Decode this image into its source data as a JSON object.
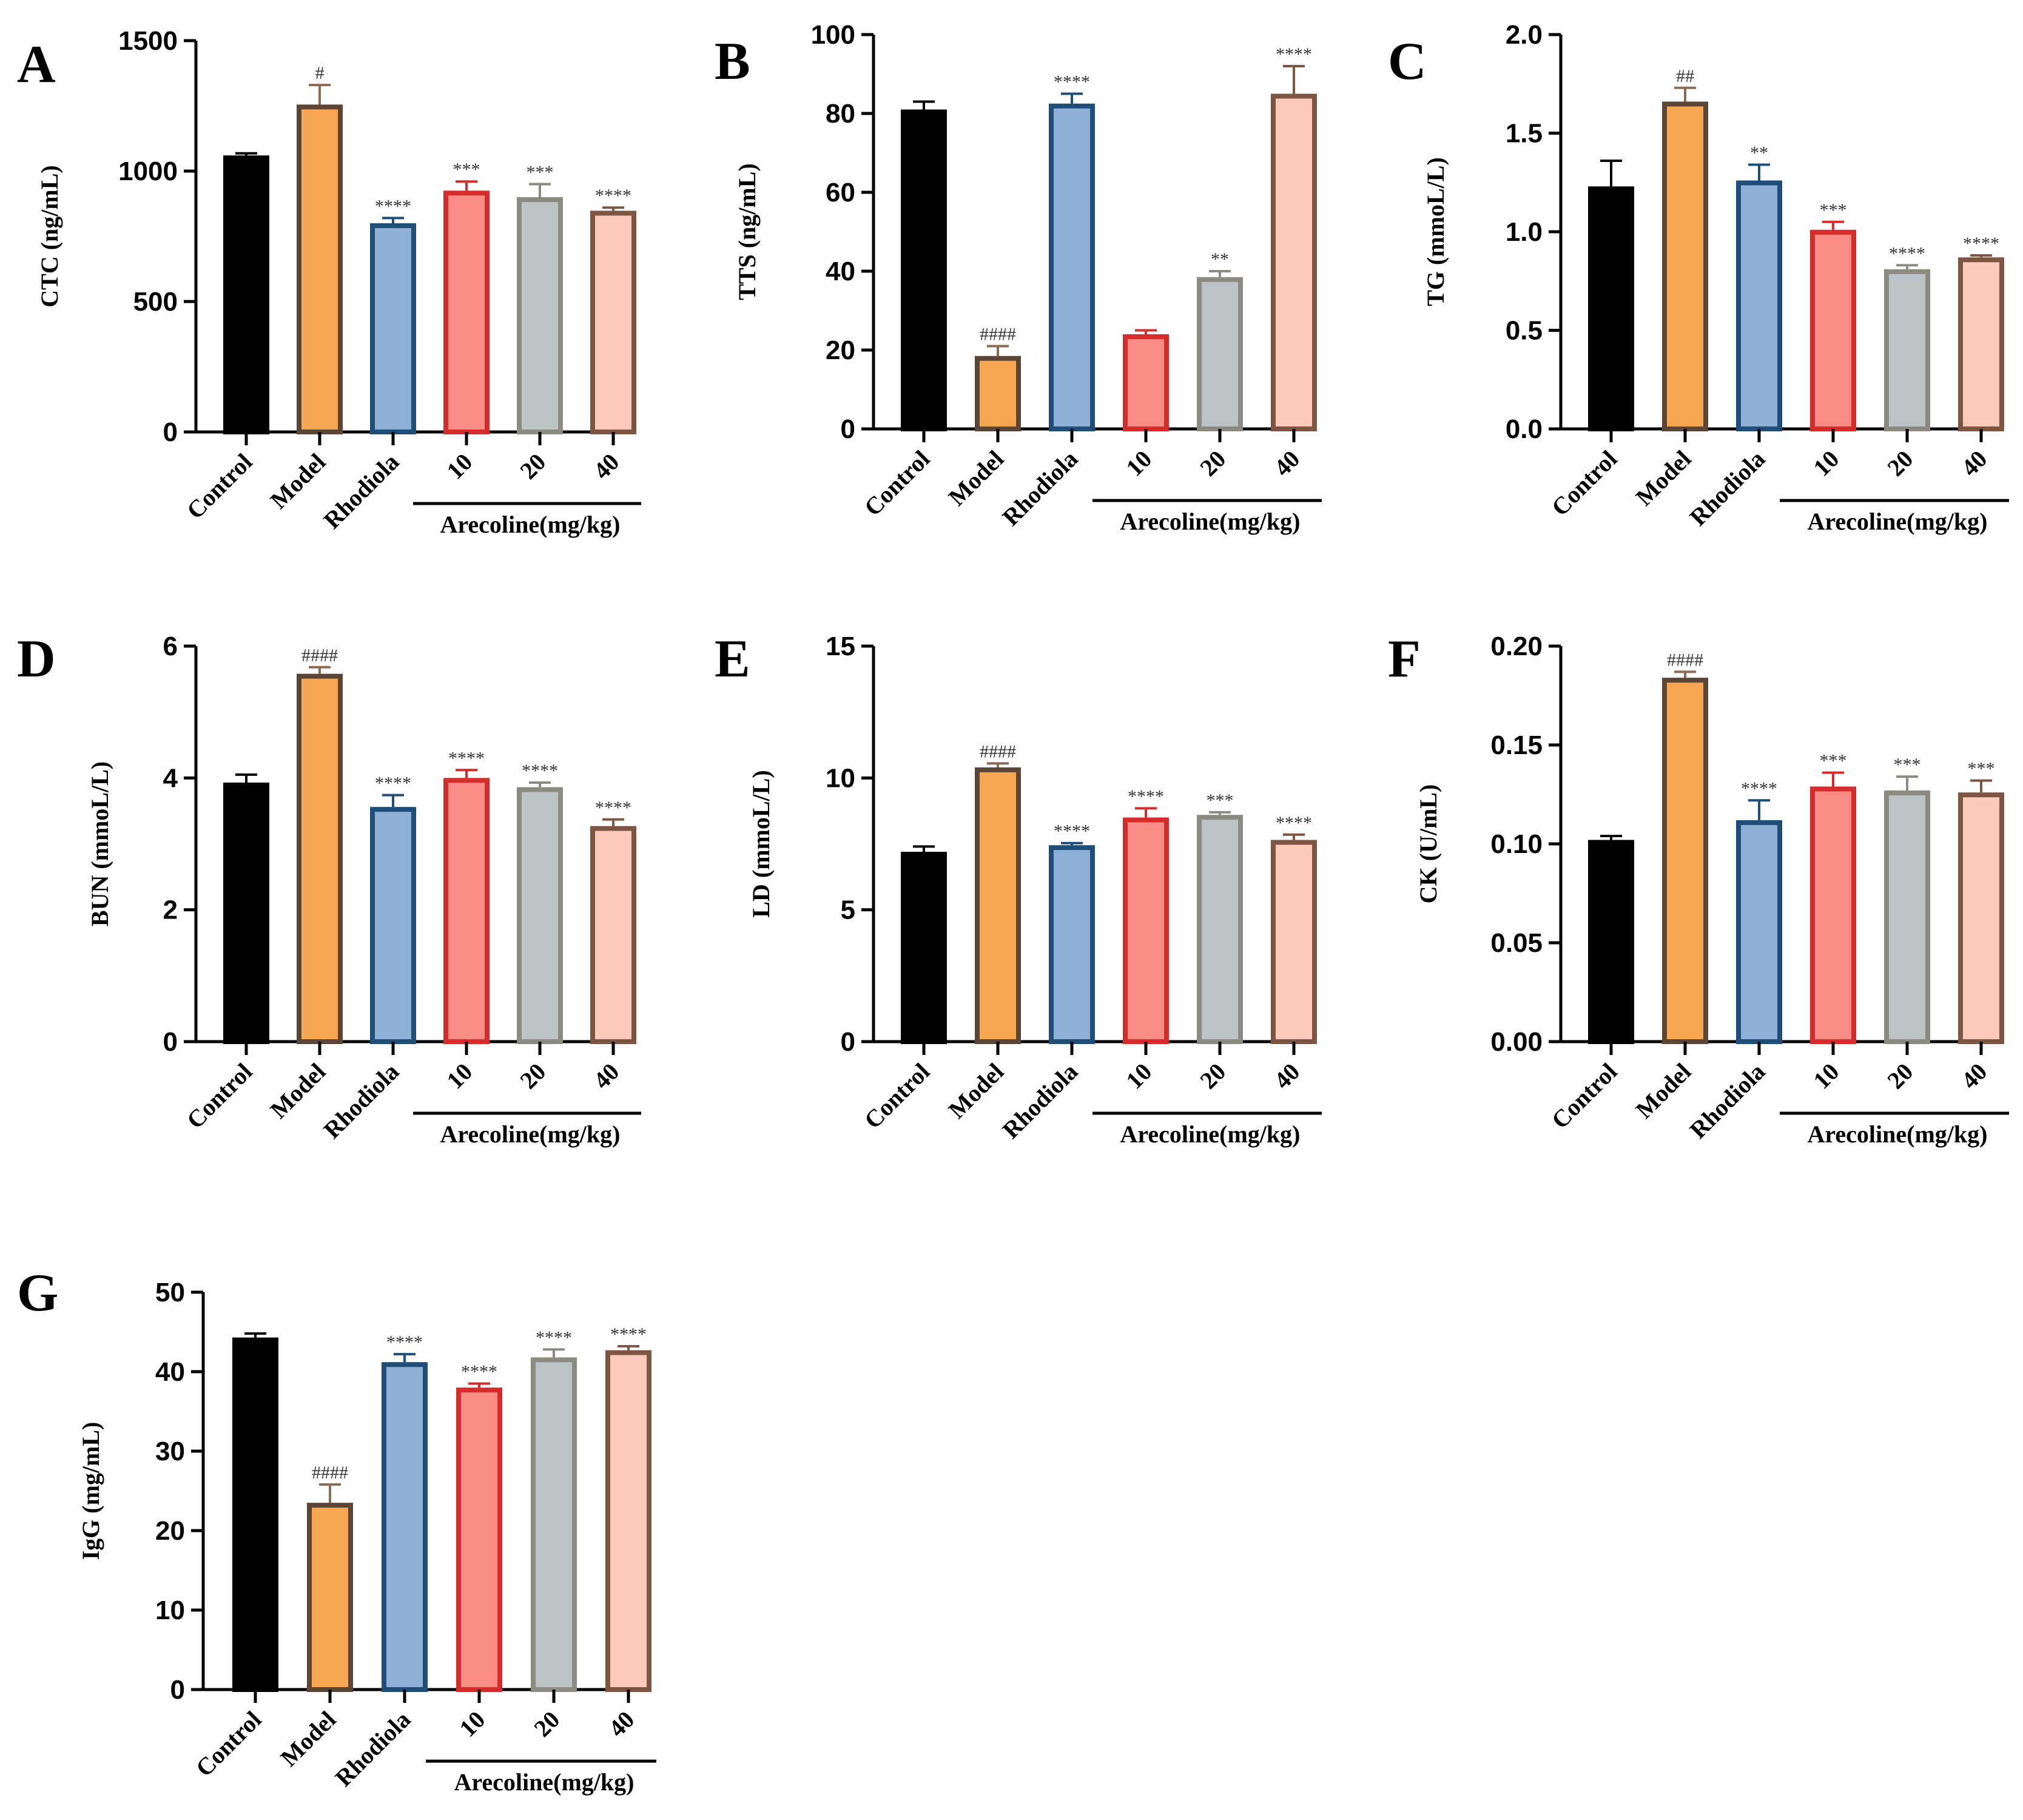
{
  "figure": {
    "group_label": "Arecoline(mg/kg)",
    "group_colors": {
      "Control": {
        "fill": "#000000",
        "stroke": "#000000",
        "err": "#000000"
      },
      "Model": {
        "fill": "#F7A652",
        "stroke": "#5B4536",
        "err": "#8A6B55"
      },
      "Rhodiola": {
        "fill": "#8EB0D6",
        "stroke": "#1F4E79",
        "err": "#1F4E79"
      },
      "10": {
        "fill": "#F98D86",
        "stroke": "#D72C2C",
        "err": "#D72C2C"
      },
      "20": {
        "fill": "#BCC3C6",
        "stroke": "#8B8B82",
        "err": "#8B8B82"
      },
      "40": {
        "fill": "#FDCABC",
        "stroke": "#7D5542",
        "err": "#7D5542"
      }
    }
  },
  "chart_data": [
    {
      "panel": "A",
      "type": "bar",
      "ylabel": "CTC (ng/mL)",
      "categories": [
        "Control",
        "Model",
        "Rhodiola",
        "10",
        "20",
        "40"
      ],
      "values": [
        1060,
        1255,
        800,
        925,
        900,
        848
      ],
      "errors": [
        8,
        75,
        20,
        35,
        50,
        12
      ],
      "significance": [
        "",
        "#",
        "****",
        "***",
        "***",
        "****"
      ],
      "ylim": [
        0,
        1500
      ],
      "yticks": [
        "0",
        "500",
        "1000",
        "1500"
      ],
      "ytick_values": [
        0,
        500,
        1000,
        1500
      ]
    },
    {
      "panel": "B",
      "type": "bar",
      "ylabel": "TTS (ng/mL)",
      "categories": [
        "Control",
        "Model",
        "Rhodiola",
        "10",
        "20",
        "40"
      ],
      "values": [
        81,
        18.5,
        82.5,
        24,
        38.5,
        85
      ],
      "errors": [
        2,
        2.5,
        2.5,
        1,
        1.5,
        7
      ],
      "significance": [
        "",
        "####",
        "****",
        "",
        "**",
        "****"
      ],
      "ylim": [
        0,
        100
      ],
      "yticks": [
        "0",
        "20",
        "40",
        "60",
        "80",
        "100"
      ],
      "ytick_values": [
        0,
        20,
        40,
        60,
        80,
        100
      ]
    },
    {
      "panel": "C",
      "type": "bar",
      "ylabel": "TG (mmoL/L)",
      "categories": [
        "Control",
        "Model",
        "Rhodiola",
        "10",
        "20",
        "40"
      ],
      "values": [
        1.23,
        1.66,
        1.26,
        1.01,
        0.81,
        0.87
      ],
      "errors": [
        0.13,
        0.07,
        0.08,
        0.04,
        0.02,
        0.01
      ],
      "significance": [
        "",
        "##",
        "**",
        "***",
        "****",
        "****"
      ],
      "ylim": [
        0,
        2.0
      ],
      "yticks": [
        "0.0",
        "0.5",
        "1.0",
        "1.5",
        "2.0"
      ],
      "ytick_values": [
        0,
        0.5,
        1.0,
        1.5,
        2.0
      ]
    },
    {
      "panel": "D",
      "type": "bar",
      "ylabel": "BUN (mmoL/L)",
      "categories": [
        "Control",
        "Model",
        "Rhodiola",
        "10",
        "20",
        "40"
      ],
      "values": [
        3.93,
        5.58,
        3.56,
        4.0,
        3.86,
        3.27
      ],
      "errors": [
        0.12,
        0.1,
        0.18,
        0.12,
        0.07,
        0.1
      ],
      "significance": [
        "",
        "####",
        "****",
        "****",
        "****",
        "****"
      ],
      "ylim": [
        0,
        6
      ],
      "yticks": [
        "0",
        "2",
        "4",
        "6"
      ],
      "ytick_values": [
        0,
        2,
        4,
        6
      ]
    },
    {
      "panel": "E",
      "type": "bar",
      "ylabel": "LD (mmoL/L)",
      "categories": [
        "Control",
        "Model",
        "Rhodiola",
        "10",
        "20",
        "40"
      ],
      "values": [
        7.2,
        10.4,
        7.45,
        8.5,
        8.6,
        7.65
      ],
      "errors": [
        0.2,
        0.15,
        0.08,
        0.35,
        0.1,
        0.2
      ],
      "significance": [
        "",
        "####",
        "****",
        "****",
        "***",
        "****"
      ],
      "ylim": [
        0,
        15
      ],
      "yticks": [
        "0",
        "5",
        "10",
        "15"
      ],
      "ytick_values": [
        0,
        5,
        10,
        15
      ]
    },
    {
      "panel": "F",
      "type": "bar",
      "ylabel": "CK (U/mL)",
      "categories": [
        "Control",
        "Model",
        "Rhodiola",
        "10",
        "20",
        "40"
      ],
      "values": [
        0.102,
        0.184,
        0.112,
        0.129,
        0.127,
        0.126
      ],
      "errors": [
        0.002,
        0.003,
        0.01,
        0.007,
        0.007,
        0.006
      ],
      "significance": [
        "",
        "####",
        "****",
        "***",
        "***",
        "***"
      ],
      "ylim": [
        0,
        0.2
      ],
      "yticks": [
        "0.00",
        "0.05",
        "0.10",
        "0.15",
        "0.20"
      ],
      "ytick_values": [
        0,
        0.05,
        0.1,
        0.15,
        0.2
      ]
    },
    {
      "panel": "G",
      "type": "bar",
      "ylabel": "IgG (mg/mL)",
      "categories": [
        "Control",
        "Model",
        "Rhodiola",
        "10",
        "20",
        "40"
      ],
      "values": [
        44.3,
        23.5,
        41.2,
        38.0,
        41.8,
        42.7
      ],
      "errors": [
        0.5,
        2.3,
        1.0,
        0.5,
        1.0,
        0.5
      ],
      "significance": [
        "",
        "####",
        "****",
        "****",
        "****",
        "****"
      ],
      "ylim": [
        0,
        50
      ],
      "yticks": [
        "0",
        "10",
        "20",
        "30",
        "40",
        "50"
      ],
      "ytick_values": [
        0,
        10,
        20,
        30,
        40,
        50
      ]
    }
  ]
}
